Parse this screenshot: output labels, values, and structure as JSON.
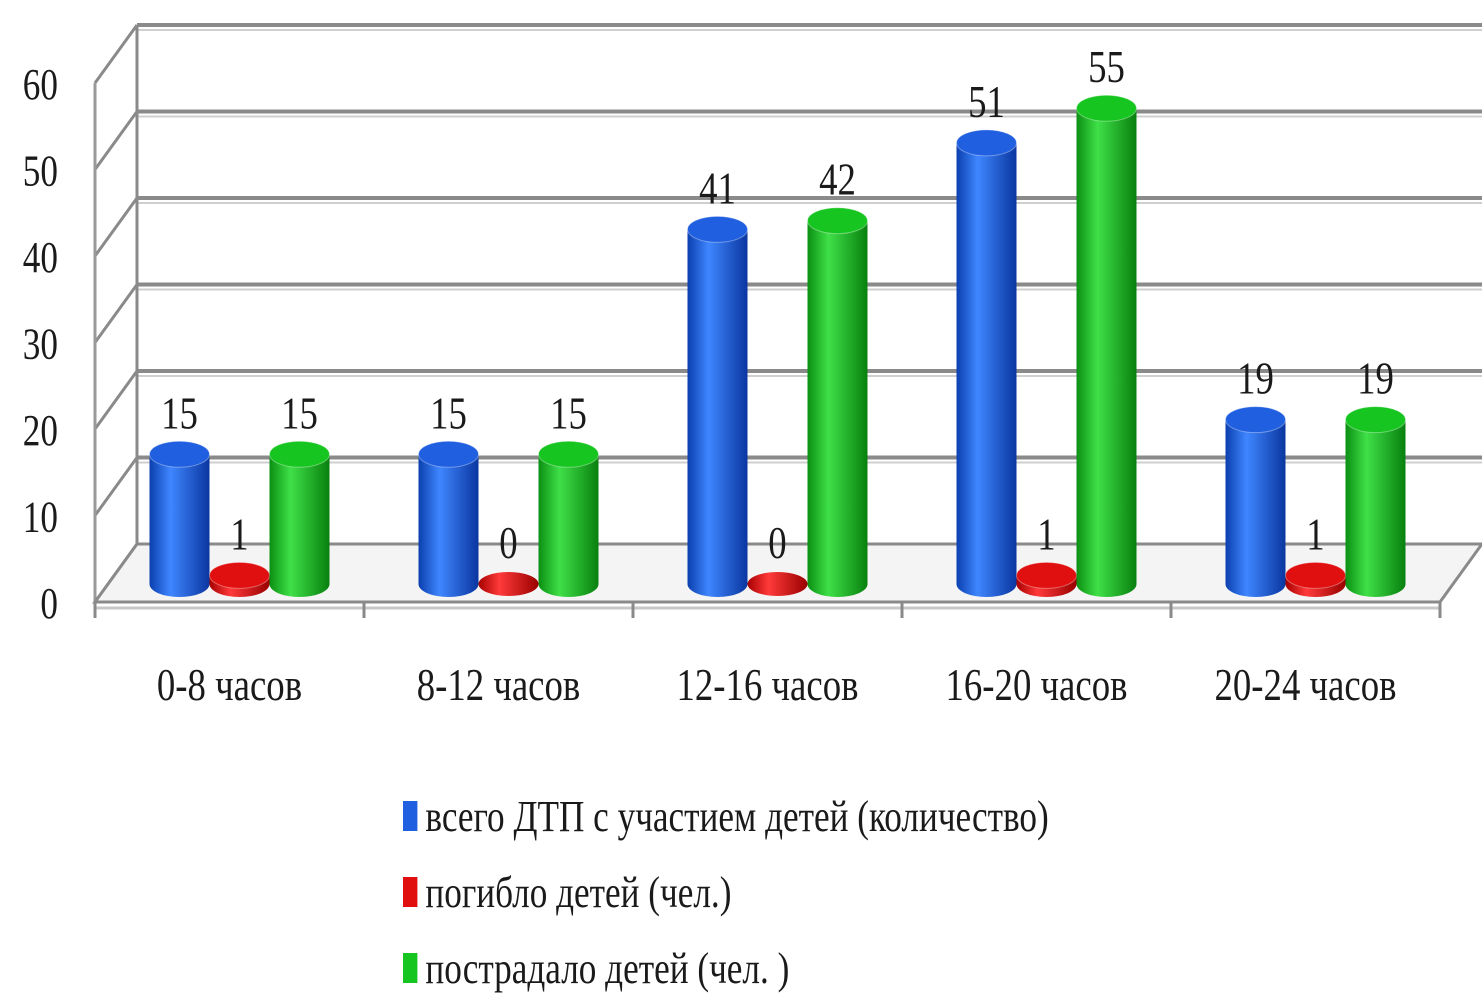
{
  "chart_data": {
    "type": "bar",
    "style": "3d-cylinder",
    "categories": [
      "0-8 часов",
      "8-12 часов",
      "12-16 часов",
      "16-20 часов",
      "20-24 часов"
    ],
    "series": [
      {
        "name": "всего ДТП с участием детей (количество)",
        "color": "#1f5fe0",
        "values": [
          15,
          15,
          41,
          51,
          19
        ]
      },
      {
        "name": "погибло детей (чел.)",
        "color": "#e01010",
        "values": [
          1,
          0,
          0,
          1,
          1
        ]
      },
      {
        "name": "пострадало детей (чел. )",
        "color": "#16c51f",
        "values": [
          15,
          15,
          42,
          55,
          19
        ]
      }
    ],
    "ylim": [
      0,
      60
    ],
    "yticks": [
      0,
      10,
      20,
      30,
      40,
      50,
      60
    ],
    "grid": true,
    "data_labels": true,
    "legend_position": "bottom"
  }
}
